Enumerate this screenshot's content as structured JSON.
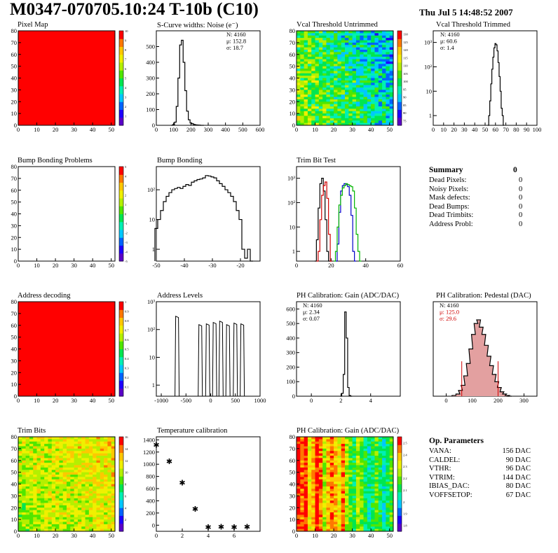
{
  "header": {
    "title": "M0347-070705.10:24 T-10b (C10)",
    "date": "Thu Jul  5 14:48:52 2007"
  },
  "palette": {
    "rainbow": [
      "#5a00c8",
      "#1e00ff",
      "#0064ff",
      "#00c8ff",
      "#00f0b4",
      "#00e650",
      "#50e600",
      "#b4f000",
      "#f0f000",
      "#ffc800",
      "#ff7800",
      "#ff0000"
    ],
    "hist_color": "#000000",
    "red": "#d00000",
    "blue": "#0000c8",
    "green": "#00b400"
  },
  "chart_data": [
    {
      "id": "pixel-map",
      "type": "heatmap",
      "title": "Pixel Map",
      "pattern": "uniform",
      "fill": "#ff0000",
      "xlim": [
        0,
        52
      ],
      "ylim": [
        0,
        80
      ],
      "xticks": [
        "0",
        "10",
        "20",
        "30",
        "40",
        "50"
      ],
      "yticks": [
        "0",
        "10",
        "20",
        "30",
        "40",
        "50",
        "60",
        "70",
        "80"
      ],
      "zticks": [
        "1",
        "2",
        "3",
        "4",
        "5",
        "6",
        "7",
        "8",
        "9",
        "10"
      ],
      "zticks_positions": [
        1,
        2,
        3,
        4,
        5,
        6,
        7,
        8,
        9,
        10
      ],
      "zlim": [
        0,
        10
      ]
    },
    {
      "id": "scurve",
      "type": "histogram",
      "title": "S-Curve widths: Noise (e⁻)",
      "xlim": [
        0,
        600
      ],
      "ylim": [
        0,
        600
      ],
      "xticks": [
        "0",
        "100",
        "200",
        "300",
        "400",
        "500",
        "600"
      ],
      "yticks": [
        "0",
        "100",
        "200",
        "300",
        "400",
        "500"
      ],
      "stats": [
        "N: 4160",
        "μ: 152.8",
        "σ: 18.7"
      ],
      "series": [
        {
          "color": "#000000",
          "x": [
            90,
            100,
            110,
            120,
            130,
            140,
            150,
            160,
            170,
            180,
            190,
            200,
            210,
            220,
            230,
            240,
            250,
            260,
            270
          ],
          "values": [
            0,
            5,
            20,
            120,
            300,
            510,
            540,
            400,
            220,
            90,
            35,
            15,
            10,
            5,
            3,
            2,
            1,
            0,
            0
          ]
        }
      ]
    },
    {
      "id": "vcal-untrimmed",
      "type": "heatmap",
      "title": "Vcal Threshold Untrimmed",
      "pattern": "noise",
      "palette": "rainbow",
      "xlim": [
        0,
        52
      ],
      "ylim": [
        0,
        80
      ],
      "xticks": [
        "0",
        "10",
        "20",
        "30",
        "40",
        "50"
      ],
      "yticks": [
        "0",
        "10",
        "20",
        "30",
        "40",
        "50",
        "60",
        "70",
        "80"
      ],
      "zticks": [
        "75",
        "80",
        "85",
        "90",
        "95",
        "100",
        "105",
        "110",
        "115",
        "120",
        "125",
        "130"
      ],
      "zticks_positions": [
        75,
        80,
        85,
        90,
        95,
        100,
        105,
        110,
        115,
        120,
        125,
        130
      ],
      "zlim": [
        72,
        132
      ]
    },
    {
      "id": "vcal-trimmed",
      "type": "histogram",
      "log": true,
      "title": "Vcal Threshold Trimmed",
      "xlim": [
        0,
        100
      ],
      "ylim": [
        0.4,
        3000
      ],
      "xticks": [
        "0",
        "10",
        "20",
        "30",
        "40",
        "50",
        "60",
        "70",
        "80",
        "90",
        "100"
      ],
      "yticks": [
        "1",
        "10",
        "10²",
        "10³"
      ],
      "ytick_values": [
        1,
        10,
        100,
        1000
      ],
      "stats": [
        "N: 4160",
        "μ: 60.6",
        "σ:  1.4"
      ],
      "series": [
        {
          "color": "#000000",
          "x": [
            53,
            54,
            55,
            56,
            57,
            58,
            59,
            60,
            61,
            62,
            63,
            64,
            65,
            66,
            67,
            68
          ],
          "values": [
            0,
            1,
            4,
            20,
            80,
            250,
            600,
            900,
            800,
            450,
            150,
            40,
            10,
            2,
            1,
            0
          ]
        }
      ]
    },
    {
      "id": "bump-problems",
      "type": "heatmap",
      "title": "Bump Bonding Problems",
      "pattern": "empty",
      "xlim": [
        0,
        52
      ],
      "ylim": [
        0,
        80
      ],
      "xticks": [
        "0",
        "10",
        "20",
        "30",
        "40",
        "50"
      ],
      "yticks": [
        "0",
        "10",
        "20",
        "30",
        "40",
        "50",
        "60",
        "70",
        "80"
      ],
      "zticks": [
        "-5",
        "-4",
        "-3",
        "-2",
        "-1",
        "0",
        "1",
        "2",
        "3",
        "4",
        "5"
      ],
      "zticks_positions": [
        -5,
        -4,
        -3,
        -2,
        -1,
        0,
        1,
        2,
        3,
        4,
        5
      ],
      "zlim": [
        -5,
        5
      ]
    },
    {
      "id": "bump-bonding",
      "type": "histogram",
      "log": true,
      "title": "Bump Bonding",
      "xlim": [
        -50,
        -13
      ],
      "ylim": [
        0.4,
        600
      ],
      "xticks": [
        "-50",
        "-40",
        "-30",
        "-20"
      ],
      "xtick_values": [
        -50,
        -40,
        -30,
        -20
      ],
      "yticks": [
        "1",
        "10",
        "10²"
      ],
      "ytick_values": [
        1,
        10,
        100
      ],
      "series": [
        {
          "color": "#000000",
          "x": [
            -50,
            -49,
            -48,
            -47,
            -46,
            -45,
            -44,
            -43,
            -42,
            -41,
            -40,
            -39,
            -38,
            -37,
            -36,
            -35,
            -34,
            -33,
            -32,
            -31,
            -30,
            -29,
            -28,
            -27,
            -26,
            -25,
            -24,
            -23,
            -22,
            -21,
            -20,
            -19,
            -18,
            -17,
            -16
          ],
          "values": [
            5,
            10,
            20,
            40,
            60,
            80,
            100,
            110,
            120,
            110,
            130,
            150,
            140,
            180,
            200,
            220,
            230,
            250,
            300,
            290,
            270,
            250,
            200,
            160,
            130,
            100,
            80,
            60,
            40,
            20,
            10,
            1,
            0.5,
            1,
            0
          ]
        }
      ]
    },
    {
      "id": "trim-bit-test",
      "type": "histogram",
      "log": true,
      "title": "Trim Bit Test",
      "xlim": [
        0,
        60
      ],
      "ylim": [
        0.4,
        3000
      ],
      "xticks": [
        "0",
        "20",
        "40",
        "60"
      ],
      "xtick_values": [
        0,
        20,
        40,
        60
      ],
      "yticks": [
        "1",
        "10",
        "10²",
        "10³"
      ],
      "ytick_values": [
        1,
        10,
        100,
        1000
      ],
      "series": [
        {
          "color": "#000000",
          "x": [
            11,
            12,
            13,
            14,
            15,
            16,
            17,
            18,
            19,
            20
          ],
          "values": [
            0,
            3,
            60,
            600,
            1000,
            300,
            20,
            1,
            0,
            0
          ]
        },
        {
          "color": "#d00000",
          "x": [
            12,
            13,
            14,
            15,
            16,
            17,
            18,
            19,
            20
          ],
          "values": [
            0,
            1,
            20,
            200,
            500,
            700,
            150,
            5,
            0
          ]
        },
        {
          "color": "#0000c8",
          "x": [
            23,
            24,
            25,
            26,
            27,
            28,
            29,
            30,
            31,
            32,
            33,
            34
          ],
          "values": [
            0,
            2,
            40,
            300,
            500,
            600,
            550,
            450,
            200,
            30,
            1,
            0
          ]
        },
        {
          "color": "#00b400",
          "x": [
            22,
            23,
            24,
            25,
            26,
            27,
            28,
            29,
            30,
            31,
            32,
            33,
            34,
            35,
            36,
            37
          ],
          "values": [
            0,
            1,
            10,
            80,
            200,
            400,
            500,
            600,
            550,
            500,
            450,
            300,
            60,
            5,
            1,
            0
          ]
        }
      ]
    },
    {
      "id": "address-decoding",
      "type": "heatmap",
      "title": "Address decoding",
      "pattern": "uniform",
      "fill": "#ff0000",
      "xlim": [
        0,
        52
      ],
      "ylim": [
        0,
        80
      ],
      "xticks": [
        "0",
        "10",
        "20",
        "30",
        "40",
        "50"
      ],
      "yticks": [
        "0",
        "10",
        "20",
        "30",
        "40",
        "50",
        "60",
        "70",
        "80"
      ],
      "zticks": [
        "0.1",
        "0.2",
        "0.3",
        "0.4",
        "0.5",
        "0.6",
        "0.7",
        "0.8",
        "0.9",
        "1"
      ],
      "zticks_positions": [
        0.1,
        0.2,
        0.3,
        0.4,
        0.5,
        0.6,
        0.7,
        0.8,
        0.9,
        1
      ],
      "zlim": [
        0,
        1
      ]
    },
    {
      "id": "address-levels",
      "type": "histogram",
      "log": true,
      "title": "Address Levels",
      "xlim": [
        -1100,
        1000
      ],
      "ylim": [
        0.4,
        1000
      ],
      "xticks": [
        "-1000",
        "-500",
        "0",
        "500",
        "1000"
      ],
      "xtick_values": [
        -1000,
        -500,
        0,
        500,
        1000
      ],
      "yticks": [
        "1",
        "10",
        "10²",
        "10³"
      ],
      "ytick_values": [
        1,
        10,
        100,
        1000
      ],
      "peaks": [
        -680,
        -210,
        -60,
        80,
        210,
        350,
        500,
        640
      ],
      "peak_heights": [
        300,
        150,
        160,
        180,
        200,
        150,
        170,
        160
      ]
    },
    {
      "id": "ph-gain",
      "type": "histogram",
      "title": "PH Calibration: Gain (ADC/DAC)",
      "xlim": [
        -1,
        6
      ],
      "ylim": [
        0,
        650
      ],
      "xticks": [
        "0",
        "2",
        "4"
      ],
      "xtick_values": [
        0,
        2,
        4
      ],
      "yticks": [
        "0",
        "100",
        "200",
        "300",
        "400",
        "500",
        "600"
      ],
      "ytick_values": [
        0,
        100,
        200,
        300,
        400,
        500,
        600
      ],
      "stats": [
        "N: 4160",
        "μ: 2.34",
        "σ: 0.07"
      ],
      "series": [
        {
          "color": "#000000",
          "x": [
            2.0,
            2.1,
            2.2,
            2.3,
            2.4,
            2.5,
            2.6,
            2.7
          ],
          "values": [
            0,
            20,
            150,
            580,
            400,
            60,
            5,
            0
          ]
        }
      ]
    },
    {
      "id": "ph-pedestal",
      "type": "histogram",
      "title": "PH Calibration: Pedestal (DAC)",
      "xlim": [
        -50,
        350
      ],
      "ylim": [
        0,
        130
      ],
      "xticks": [
        "0",
        "100",
        "200",
        "300"
      ],
      "xtick_values": [
        0,
        100,
        200,
        300
      ],
      "yticks": [],
      "ytick_values": [],
      "stats": [
        "N: 4160",
        "μ: 125.0",
        "σ: 29.6"
      ],
      "markers": [
        60,
        200
      ],
      "series": [
        {
          "color": "#000000",
          "fill": "#e3a0a0",
          "x": [
            30,
            45,
            55,
            65,
            75,
            85,
            95,
            105,
            115,
            125,
            135,
            145,
            155,
            165,
            175,
            185,
            195,
            205,
            215,
            225,
            235,
            245
          ],
          "values": [
            1,
            3,
            8,
            15,
            28,
            45,
            65,
            85,
            100,
            105,
            95,
            85,
            70,
            55,
            42,
            30,
            20,
            12,
            6,
            3,
            1,
            0
          ]
        }
      ]
    },
    {
      "id": "trim-bits",
      "type": "heatmap",
      "title": "Trim Bits",
      "pattern": "noise-warm",
      "palette": "rainbow",
      "xlim": [
        0,
        52
      ],
      "ylim": [
        0,
        80
      ],
      "xticks": [
        "0",
        "10",
        "20",
        "30",
        "40",
        "50"
      ],
      "yticks": [
        "0",
        "10",
        "20",
        "30",
        "40",
        "50",
        "60",
        "70",
        "80"
      ],
      "zticks": [
        "2",
        "4",
        "6",
        "8",
        "10",
        "12",
        "14",
        "16"
      ],
      "zticks_positions": [
        2,
        4,
        6,
        8,
        10,
        12,
        14,
        16
      ],
      "zlim": [
        0,
        16
      ]
    },
    {
      "id": "temp-calibration",
      "type": "scatter",
      "title": "Temperature calibration",
      "xlim": [
        0,
        8
      ],
      "ylim": [
        -100,
        1450
      ],
      "xticks": [
        "0",
        "2",
        "4",
        "6"
      ],
      "xtick_values": [
        0,
        2,
        4,
        6
      ],
      "yticks": [
        "0",
        "200",
        "400",
        "600",
        "800",
        "1000",
        "1200",
        "1400"
      ],
      "ytick_values": [
        0,
        200,
        400,
        600,
        800,
        1000,
        1200,
        1400
      ],
      "x": [
        0,
        1,
        2,
        3,
        4,
        5,
        6,
        7
      ],
      "values": [
        1320,
        1050,
        700,
        270,
        -30,
        -25,
        -30,
        -25
      ]
    },
    {
      "id": "ph-gain-map",
      "type": "heatmap",
      "title": "PH Calibration: Gain (ADC/DAC)",
      "pattern": "stripes",
      "palette": "rainbow",
      "xlim": [
        0,
        52
      ],
      "ylim": [
        0,
        80
      ],
      "xticks": [
        "0",
        "10",
        "20",
        "30",
        "40",
        "50"
      ],
      "yticks": [
        "0",
        "10",
        "20",
        "30",
        "40",
        "50",
        "60",
        "70",
        "80"
      ],
      "zticks": [
        "1.8",
        "1.9",
        "2",
        "2.1",
        "2.2",
        "2.3",
        "2.4",
        "2.5"
      ],
      "zticks_positions": [
        1.8,
        1.9,
        2.0,
        2.1,
        2.2,
        2.3,
        2.4,
        2.5
      ],
      "zlim": [
        1.75,
        2.55
      ]
    }
  ],
  "summary": {
    "title": "Summary",
    "total": "0",
    "rows": [
      {
        "label": "Dead Pixels:",
        "value": "0"
      },
      {
        "label": "Noisy Pixels:",
        "value": "0"
      },
      {
        "label": "Mask defects:",
        "value": "0"
      },
      {
        "label": "Dead Bumps:",
        "value": "0"
      },
      {
        "label": "Dead Trimbits:",
        "value": "0"
      },
      {
        "label": "Address Probl:",
        "value": "0"
      }
    ]
  },
  "op_params": {
    "title": "Op. Parameters",
    "rows": [
      {
        "label": "VANA:",
        "value": "156 DAC"
      },
      {
        "label": "CALDEL:",
        "value": "90 DAC"
      },
      {
        "label": "VTHR:",
        "value": "96 DAC"
      },
      {
        "label": "VTRIM:",
        "value": "144 DAC"
      },
      {
        "label": "IBIAS_DAC:",
        "value": "80 DAC"
      },
      {
        "label": "VOFFSETOP:",
        "value": "67 DAC"
      }
    ]
  }
}
